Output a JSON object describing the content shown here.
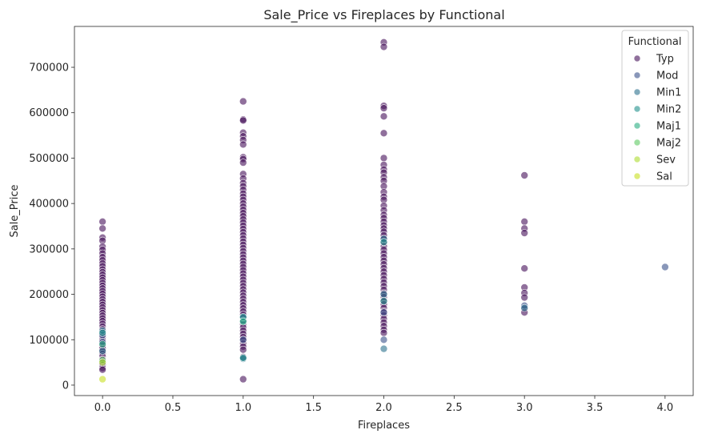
{
  "chart_data": {
    "type": "scatter",
    "title": "Sale_Price vs Fireplaces by Functional",
    "xlabel": "Fireplaces",
    "ylabel": "Sale_Price",
    "xlim": [
      -0.2,
      4.2
    ],
    "ylim": [
      -23000,
      790000
    ],
    "xticks": [
      0.0,
      0.5,
      1.0,
      1.5,
      2.0,
      2.5,
      3.0,
      3.5,
      4.0
    ],
    "xtick_labels": [
      "0.0",
      "0.5",
      "1.0",
      "1.5",
      "2.0",
      "2.5",
      "3.0",
      "3.5",
      "4.0"
    ],
    "yticks": [
      0,
      100000,
      200000,
      300000,
      400000,
      500000,
      600000,
      700000
    ],
    "ytick_labels": [
      "0",
      "100000",
      "200000",
      "300000",
      "400000",
      "500000",
      "600000",
      "700000"
    ],
    "grid": false,
    "legend": {
      "title": "Functional",
      "position": "top-right"
    },
    "series": [
      {
        "name": "Typ",
        "color": "#46105a",
        "points": [
          [
            0,
            360000
          ],
          [
            0,
            345000
          ],
          [
            0,
            325000
          ],
          [
            0,
            318000
          ],
          [
            0,
            305000
          ],
          [
            0,
            298000
          ],
          [
            0,
            290000
          ],
          [
            0,
            282000
          ],
          [
            0,
            275000
          ],
          [
            0,
            268000
          ],
          [
            0,
            262000
          ],
          [
            0,
            255000
          ],
          [
            0,
            249000
          ],
          [
            0,
            243000
          ],
          [
            0,
            237000
          ],
          [
            0,
            231000
          ],
          [
            0,
            225000
          ],
          [
            0,
            219000
          ],
          [
            0,
            213000
          ],
          [
            0,
            207000
          ],
          [
            0,
            201000
          ],
          [
            0,
            195000
          ],
          [
            0,
            189000
          ],
          [
            0,
            183000
          ],
          [
            0,
            177000
          ],
          [
            0,
            171000
          ],
          [
            0,
            165000
          ],
          [
            0,
            159000
          ],
          [
            0,
            153000
          ],
          [
            0,
            147000
          ],
          [
            0,
            141000
          ],
          [
            0,
            135000
          ],
          [
            0,
            129000
          ],
          [
            0,
            123000
          ],
          [
            0,
            117000
          ],
          [
            0,
            111000
          ],
          [
            0,
            105000
          ],
          [
            0,
            99000
          ],
          [
            0,
            93000
          ],
          [
            0,
            87000
          ],
          [
            0,
            81000
          ],
          [
            0,
            75000
          ],
          [
            0,
            69000
          ],
          [
            0,
            63000
          ],
          [
            0,
            57000
          ],
          [
            0,
            51000
          ],
          [
            0,
            45000
          ],
          [
            0,
            38000
          ],
          [
            0,
            34000
          ],
          [
            1,
            625000
          ],
          [
            1,
            585000
          ],
          [
            1,
            583000
          ],
          [
            1,
            556000
          ],
          [
            1,
            548000
          ],
          [
            1,
            540000
          ],
          [
            1,
            530000
          ],
          [
            1,
            502000
          ],
          [
            1,
            498000
          ],
          [
            1,
            490000
          ],
          [
            1,
            465000
          ],
          [
            1,
            455000
          ],
          [
            1,
            445000
          ],
          [
            1,
            438000
          ],
          [
            1,
            430000
          ],
          [
            1,
            422000
          ],
          [
            1,
            415000
          ],
          [
            1,
            408000
          ],
          [
            1,
            400000
          ],
          [
            1,
            393000
          ],
          [
            1,
            386000
          ],
          [
            1,
            379000
          ],
          [
            1,
            372000
          ],
          [
            1,
            365000
          ],
          [
            1,
            358000
          ],
          [
            1,
            351000
          ],
          [
            1,
            344000
          ],
          [
            1,
            337000
          ],
          [
            1,
            330000
          ],
          [
            1,
            323000
          ],
          [
            1,
            316000
          ],
          [
            1,
            309000
          ],
          [
            1,
            302000
          ],
          [
            1,
            295000
          ],
          [
            1,
            288000
          ],
          [
            1,
            281000
          ],
          [
            1,
            274000
          ],
          [
            1,
            267000
          ],
          [
            1,
            260000
          ],
          [
            1,
            253000
          ],
          [
            1,
            246000
          ],
          [
            1,
            239000
          ],
          [
            1,
            232000
          ],
          [
            1,
            225000
          ],
          [
            1,
            218000
          ],
          [
            1,
            211000
          ],
          [
            1,
            204000
          ],
          [
            1,
            197000
          ],
          [
            1,
            190000
          ],
          [
            1,
            183000
          ],
          [
            1,
            176000
          ],
          [
            1,
            169000
          ],
          [
            1,
            162000
          ],
          [
            1,
            155000
          ],
          [
            1,
            148000
          ],
          [
            1,
            141000
          ],
          [
            1,
            134000
          ],
          [
            1,
            127000
          ],
          [
            1,
            120000
          ],
          [
            1,
            113000
          ],
          [
            1,
            106000
          ],
          [
            1,
            99000
          ],
          [
            1,
            92000
          ],
          [
            1,
            85000
          ],
          [
            1,
            78000
          ],
          [
            1,
            62000
          ],
          [
            1,
            13000
          ],
          [
            2,
            755000
          ],
          [
            2,
            745000
          ],
          [
            2,
            615000
          ],
          [
            2,
            610000
          ],
          [
            2,
            592000
          ],
          [
            2,
            555000
          ],
          [
            2,
            500000
          ],
          [
            2,
            485000
          ],
          [
            2,
            475000
          ],
          [
            2,
            468000
          ],
          [
            2,
            458000
          ],
          [
            2,
            450000
          ],
          [
            2,
            438000
          ],
          [
            2,
            425000
          ],
          [
            2,
            415000
          ],
          [
            2,
            408000
          ],
          [
            2,
            395000
          ],
          [
            2,
            385000
          ],
          [
            2,
            375000
          ],
          [
            2,
            368000
          ],
          [
            2,
            360000
          ],
          [
            2,
            352000
          ],
          [
            2,
            345000
          ],
          [
            2,
            338000
          ],
          [
            2,
            330000
          ],
          [
            2,
            322000
          ],
          [
            2,
            314000
          ],
          [
            2,
            306000
          ],
          [
            2,
            298000
          ],
          [
            2,
            290000
          ],
          [
            2,
            282000
          ],
          [
            2,
            274000
          ],
          [
            2,
            266000
          ],
          [
            2,
            258000
          ],
          [
            2,
            250000
          ],
          [
            2,
            242000
          ],
          [
            2,
            234000
          ],
          [
            2,
            226000
          ],
          [
            2,
            218000
          ],
          [
            2,
            210000
          ],
          [
            2,
            202000
          ],
          [
            2,
            194000
          ],
          [
            2,
            186000
          ],
          [
            2,
            178000
          ],
          [
            2,
            170000
          ],
          [
            2,
            162000
          ],
          [
            2,
            154000
          ],
          [
            2,
            146000
          ],
          [
            2,
            138000
          ],
          [
            2,
            130000
          ],
          [
            2,
            122000
          ],
          [
            2,
            115000
          ],
          [
            3,
            462000
          ],
          [
            3,
            360000
          ],
          [
            3,
            345000
          ],
          [
            3,
            335000
          ],
          [
            3,
            257000
          ],
          [
            3,
            215000
          ],
          [
            3,
            203000
          ],
          [
            3,
            193000
          ],
          [
            3,
            168000
          ],
          [
            3,
            160000
          ]
        ]
      },
      {
        "name": "Mod",
        "color": "#3b528b",
        "points": [
          [
            0,
            110000
          ],
          [
            0,
            95000
          ],
          [
            1,
            148000
          ],
          [
            1,
            100000
          ],
          [
            2,
            160000
          ],
          [
            2,
            100000
          ],
          [
            3,
            175000
          ],
          [
            4,
            260000
          ]
        ]
      },
      {
        "name": "Min1",
        "color": "#2c728e",
        "points": [
          [
            0,
            120000
          ],
          [
            0,
            75000
          ],
          [
            1,
            142000
          ],
          [
            1,
            58000
          ],
          [
            2,
            322000
          ],
          [
            2,
            200000
          ],
          [
            2,
            80000
          ],
          [
            3,
            170000
          ]
        ]
      },
      {
        "name": "Min2",
        "color": "#21918c",
        "points": [
          [
            0,
            115000
          ],
          [
            1,
            150000
          ],
          [
            1,
            60000
          ],
          [
            2,
            315000
          ],
          [
            2,
            185000
          ]
        ]
      },
      {
        "name": "Maj1",
        "color": "#28ae80",
        "points": [
          [
            0,
            90000
          ],
          [
            1,
            140000
          ]
        ]
      },
      {
        "name": "Maj2",
        "color": "#5ec962",
        "points": [
          [
            0,
            55000
          ]
        ]
      },
      {
        "name": "Sev",
        "color": "#addc30",
        "points": [
          [
            0,
            50000
          ]
        ]
      },
      {
        "name": "Sal",
        "color": "#c8e020",
        "points": [
          [
            0,
            13000
          ]
        ]
      }
    ]
  }
}
